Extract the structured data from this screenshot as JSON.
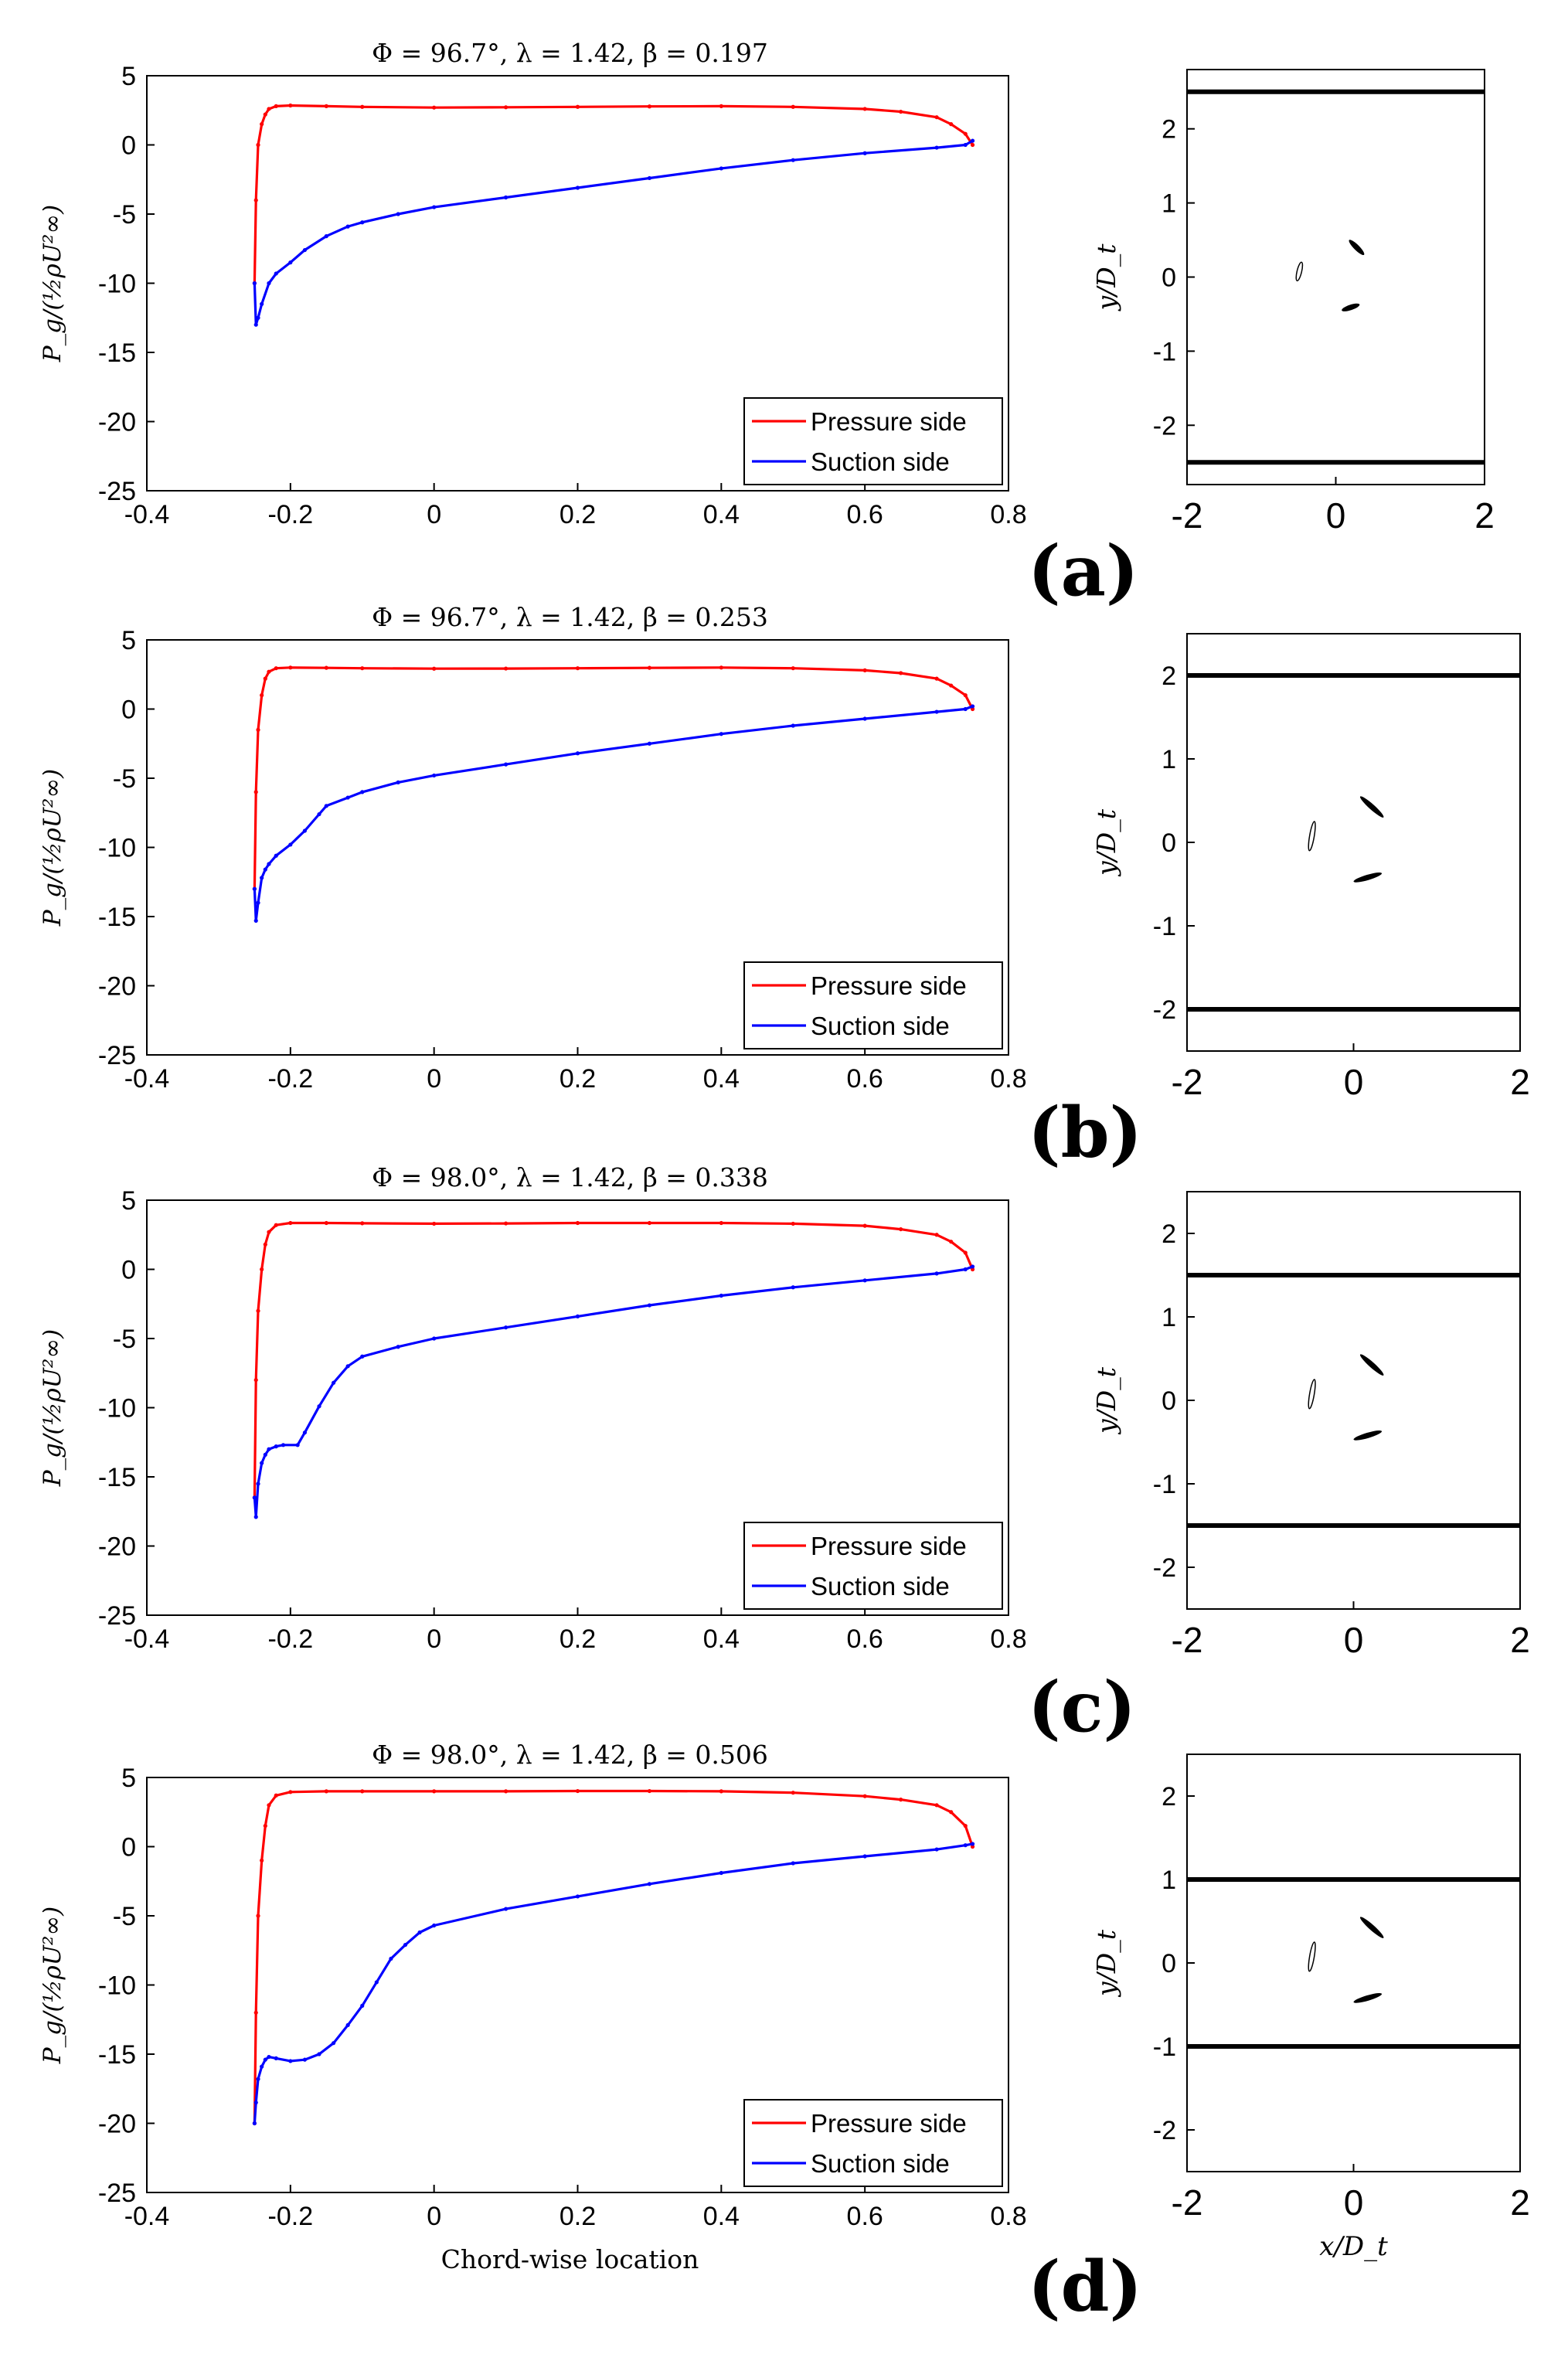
{
  "figure": {
    "panel_labels": [
      "(a)",
      "(b)",
      "(c)",
      "(d)"
    ],
    "colors": {
      "pressure": "#ff0000",
      "suction": "#0000ff",
      "axis": "#000000",
      "wall": "#000000"
    }
  },
  "chart_data": [
    {
      "type": "line",
      "panel": "(a)",
      "title": "Φ = 96.7°, λ = 1.42, β = 0.197",
      "xlabel": "",
      "ylabel": "P_g/(½ρU²∞)",
      "xlim": [
        -0.4,
        0.8
      ],
      "ylim": [
        -25,
        5
      ],
      "xticks": [
        "-0.4",
        "-0.2",
        "0",
        "0.2",
        "0.4",
        "0.6",
        "0.8"
      ],
      "yticks": [
        "5",
        "0",
        "-5",
        "-10",
        "-15",
        "-20",
        "-25"
      ],
      "grid": false,
      "legend": "bottom-right",
      "series": [
        {
          "name": "Pressure side",
          "color": "#ff0000",
          "x": [
            -0.25,
            -0.248,
            -0.245,
            -0.24,
            -0.235,
            -0.23,
            -0.22,
            -0.2,
            -0.15,
            -0.1,
            0.0,
            0.1,
            0.2,
            0.3,
            0.4,
            0.5,
            0.6,
            0.65,
            0.7,
            0.72,
            0.74,
            0.75
          ],
          "y": [
            -10,
            -4,
            0,
            1.5,
            2.2,
            2.6,
            2.8,
            2.85,
            2.8,
            2.75,
            2.7,
            2.72,
            2.75,
            2.78,
            2.8,
            2.75,
            2.6,
            2.4,
            2.0,
            1.5,
            0.8,
            0.0
          ]
        },
        {
          "name": "Suction side",
          "color": "#0000ff",
          "x": [
            -0.25,
            -0.248,
            -0.245,
            -0.24,
            -0.23,
            -0.22,
            -0.2,
            -0.18,
            -0.15,
            -0.12,
            -0.1,
            -0.05,
            0.0,
            0.1,
            0.2,
            0.3,
            0.4,
            0.5,
            0.6,
            0.7,
            0.74,
            0.75
          ],
          "y": [
            -10,
            -13,
            -12.5,
            -11.5,
            -10,
            -9.3,
            -8.5,
            -7.6,
            -6.6,
            -5.9,
            -5.6,
            -5.0,
            -4.5,
            -3.8,
            -3.1,
            -2.4,
            -1.7,
            -1.1,
            -0.6,
            -0.2,
            0.0,
            0.3
          ]
        }
      ]
    },
    {
      "type": "line",
      "panel": "(b)",
      "title": "Φ = 96.7°, λ = 1.42, β = 0.253",
      "xlabel": "",
      "ylabel": "P_g/(½ρU²∞)",
      "xlim": [
        -0.4,
        0.8
      ],
      "ylim": [
        -25,
        5
      ],
      "xticks": [
        "-0.4",
        "-0.2",
        "0",
        "0.2",
        "0.4",
        "0.6",
        "0.8"
      ],
      "yticks": [
        "5",
        "0",
        "-5",
        "-10",
        "-15",
        "-20",
        "-25"
      ],
      "grid": false,
      "legend": "bottom-right",
      "series": [
        {
          "name": "Pressure side",
          "color": "#ff0000",
          "x": [
            -0.25,
            -0.248,
            -0.245,
            -0.24,
            -0.235,
            -0.23,
            -0.22,
            -0.2,
            -0.15,
            -0.1,
            0.0,
            0.1,
            0.2,
            0.3,
            0.4,
            0.5,
            0.6,
            0.65,
            0.7,
            0.72,
            0.74,
            0.75
          ],
          "y": [
            -13,
            -6,
            -1.5,
            1.0,
            2.2,
            2.7,
            2.95,
            3.0,
            2.98,
            2.95,
            2.92,
            2.93,
            2.95,
            2.98,
            3.0,
            2.95,
            2.8,
            2.6,
            2.2,
            1.7,
            1.0,
            0.0
          ]
        },
        {
          "name": "Suction side",
          "color": "#0000ff",
          "x": [
            -0.25,
            -0.248,
            -0.245,
            -0.24,
            -0.235,
            -0.23,
            -0.22,
            -0.2,
            -0.18,
            -0.16,
            -0.15,
            -0.12,
            -0.1,
            -0.05,
            0.0,
            0.1,
            0.2,
            0.3,
            0.4,
            0.5,
            0.6,
            0.7,
            0.74,
            0.75
          ],
          "y": [
            -13,
            -15.3,
            -14,
            -12.2,
            -11.6,
            -11.2,
            -10.6,
            -9.8,
            -8.8,
            -7.6,
            -7.0,
            -6.4,
            -6.0,
            -5.3,
            -4.8,
            -4.0,
            -3.2,
            -2.5,
            -1.8,
            -1.2,
            -0.7,
            -0.2,
            0.0,
            0.2
          ]
        }
      ]
    },
    {
      "type": "line",
      "panel": "(c)",
      "title": "Φ = 98.0°, λ = 1.42, β = 0.338",
      "xlabel": "",
      "ylabel": "P_g/(½ρU²∞)",
      "xlim": [
        -0.4,
        0.8
      ],
      "ylim": [
        -25,
        5
      ],
      "xticks": [
        "-0.4",
        "-0.2",
        "0",
        "0.2",
        "0.4",
        "0.6",
        "0.8"
      ],
      "yticks": [
        "5",
        "0",
        "-5",
        "-10",
        "-15",
        "-20",
        "-25"
      ],
      "grid": false,
      "legend": "bottom-right",
      "series": [
        {
          "name": "Pressure side",
          "color": "#ff0000",
          "x": [
            -0.25,
            -0.248,
            -0.245,
            -0.24,
            -0.235,
            -0.23,
            -0.22,
            -0.2,
            -0.15,
            -0.1,
            0.0,
            0.1,
            0.2,
            0.3,
            0.4,
            0.5,
            0.6,
            0.65,
            0.7,
            0.72,
            0.74,
            0.75
          ],
          "y": [
            -16.5,
            -8,
            -3,
            0.0,
            1.8,
            2.7,
            3.2,
            3.35,
            3.35,
            3.33,
            3.3,
            3.32,
            3.35,
            3.35,
            3.35,
            3.3,
            3.15,
            2.9,
            2.5,
            2.0,
            1.2,
            0.0
          ]
        },
        {
          "name": "Suction side",
          "color": "#0000ff",
          "x": [
            -0.25,
            -0.248,
            -0.245,
            -0.24,
            -0.235,
            -0.23,
            -0.22,
            -0.21,
            -0.19,
            -0.18,
            -0.16,
            -0.14,
            -0.12,
            -0.1,
            -0.05,
            0.0,
            0.1,
            0.2,
            0.3,
            0.4,
            0.5,
            0.6,
            0.7,
            0.74,
            0.75
          ],
          "y": [
            -16.5,
            -17.9,
            -15.5,
            -14.0,
            -13.4,
            -13.0,
            -12.8,
            -12.7,
            -12.7,
            -11.8,
            -9.9,
            -8.2,
            -7.0,
            -6.3,
            -5.6,
            -5.0,
            -4.2,
            -3.4,
            -2.6,
            -1.9,
            -1.3,
            -0.8,
            -0.3,
            0.0,
            0.2
          ]
        }
      ]
    },
    {
      "type": "line",
      "panel": "(d)",
      "title": "Φ = 98.0°, λ = 1.42, β = 0.506",
      "xlabel": "Chord-wise location",
      "ylabel": "P_g/(½ρU²∞)",
      "xlim": [
        -0.4,
        0.8
      ],
      "ylim": [
        -25,
        5
      ],
      "xticks": [
        "-0.4",
        "-0.2",
        "0",
        "0.2",
        "0.4",
        "0.6",
        "0.8"
      ],
      "yticks": [
        "5",
        "0",
        "-5",
        "-10",
        "-15",
        "-20",
        "-25"
      ],
      "grid": false,
      "legend": "bottom-right",
      "series": [
        {
          "name": "Pressure side",
          "color": "#ff0000",
          "x": [
            -0.25,
            -0.248,
            -0.245,
            -0.24,
            -0.235,
            -0.23,
            -0.22,
            -0.2,
            -0.15,
            -0.1,
            0.0,
            0.1,
            0.2,
            0.3,
            0.4,
            0.5,
            0.6,
            0.65,
            0.7,
            0.72,
            0.74,
            0.75
          ],
          "y": [
            -20,
            -12,
            -5,
            -1,
            1.5,
            3.0,
            3.7,
            3.95,
            4.0,
            4.0,
            4.0,
            4.0,
            4.02,
            4.02,
            4.0,
            3.9,
            3.65,
            3.4,
            3.0,
            2.5,
            1.5,
            0.0
          ]
        },
        {
          "name": "Suction side",
          "color": "#0000ff",
          "x": [
            -0.25,
            -0.248,
            -0.245,
            -0.24,
            -0.235,
            -0.23,
            -0.22,
            -0.2,
            -0.18,
            -0.16,
            -0.14,
            -0.12,
            -0.1,
            -0.08,
            -0.06,
            -0.04,
            -0.02,
            0.0,
            0.1,
            0.2,
            0.3,
            0.4,
            0.5,
            0.6,
            0.7,
            0.74,
            0.75
          ],
          "y": [
            -20,
            -18.5,
            -16.8,
            -15.9,
            -15.4,
            -15.2,
            -15.3,
            -15.5,
            -15.4,
            -15.0,
            -14.2,
            -12.9,
            -11.5,
            -9.8,
            -8.1,
            -7.1,
            -6.2,
            -5.7,
            -4.5,
            -3.6,
            -2.7,
            -1.9,
            -1.2,
            -0.7,
            -0.2,
            0.1,
            0.2
          ]
        }
      ]
    },
    {
      "type": "scatter",
      "panel": "(a)",
      "title": "",
      "xlabel": "",
      "ylabel": "y/D_t",
      "xlim": [
        -2,
        2
      ],
      "ylim": [
        -2.8,
        2.8
      ],
      "xticks": [
        "-2",
        "0",
        "2"
      ],
      "yticks": [
        "2",
        "1",
        "0",
        "-1",
        "-2"
      ],
      "walls_y": [
        2.5,
        -2.5
      ],
      "blades": [
        {
          "x": [
            -0.52,
            -0.46
          ],
          "y": [
            -0.05,
            0.2
          ]
        },
        {
          "x": [
            0.18,
            0.38
          ],
          "y": [
            0.5,
            0.3
          ]
        },
        {
          "x": [
            0.08,
            0.32
          ],
          "y": [
            -0.45,
            -0.37
          ]
        }
      ]
    },
    {
      "type": "scatter",
      "panel": "(b)",
      "title": "",
      "xlabel": "",
      "ylabel": "y/D_t",
      "xlim": [
        -2,
        2
      ],
      "ylim": [
        -2.5,
        2.5
      ],
      "xticks": [
        "-2",
        "0",
        "2"
      ],
      "yticks": [
        "2",
        "1",
        "0",
        "-1",
        "-2"
      ],
      "walls_y": [
        2,
        -2
      ],
      "blades": [
        {
          "x": [
            -0.53,
            -0.47
          ],
          "y": [
            -0.1,
            0.25
          ]
        },
        {
          "x": [
            0.08,
            0.36
          ],
          "y": [
            0.55,
            0.3
          ]
        },
        {
          "x": [
            0.0,
            0.34
          ],
          "y": [
            -0.47,
            -0.37
          ]
        }
      ]
    },
    {
      "type": "scatter",
      "panel": "(c)",
      "title": "",
      "xlabel": "",
      "ylabel": "y/D_t",
      "xlim": [
        -2,
        2
      ],
      "ylim": [
        -2.5,
        2.5
      ],
      "xticks": [
        "-2",
        "0",
        "2"
      ],
      "yticks": [
        "2",
        "1",
        "0",
        "-1",
        "-2"
      ],
      "walls_y": [
        1.5,
        -1.5
      ],
      "blades": [
        {
          "x": [
            -0.53,
            -0.47
          ],
          "y": [
            -0.1,
            0.25
          ]
        },
        {
          "x": [
            0.08,
            0.36
          ],
          "y": [
            0.55,
            0.3
          ]
        },
        {
          "x": [
            0.0,
            0.34
          ],
          "y": [
            -0.47,
            -0.37
          ]
        }
      ]
    },
    {
      "type": "scatter",
      "panel": "(d)",
      "title": "",
      "xlabel": "x/D_t",
      "ylabel": "y/D_t",
      "xlim": [
        -2,
        2
      ],
      "ylim": [
        -2.5,
        2.5
      ],
      "xticks": [
        "-2",
        "0",
        "2"
      ],
      "yticks": [
        "2",
        "1",
        "0",
        "-1",
        "-2"
      ],
      "walls_y": [
        1,
        -1
      ],
      "blades": [
        {
          "x": [
            -0.53,
            -0.47
          ],
          "y": [
            -0.1,
            0.25
          ]
        },
        {
          "x": [
            0.08,
            0.36
          ],
          "y": [
            0.55,
            0.3
          ]
        },
        {
          "x": [
            0.0,
            0.34
          ],
          "y": [
            -0.47,
            -0.37
          ]
        }
      ]
    }
  ]
}
